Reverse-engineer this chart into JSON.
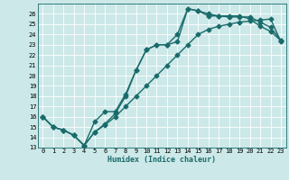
{
  "xlabel": "Humidex (Indice chaleur)",
  "bg_color": "#cce8e8",
  "line_color": "#1a6b6b",
  "grid_color": "#ffffff",
  "xlim": [
    -0.5,
    23.5
  ],
  "ylim": [
    13.0,
    27.0
  ],
  "yticks": [
    13,
    14,
    15,
    16,
    17,
    18,
    19,
    20,
    21,
    22,
    23,
    24,
    25,
    26
  ],
  "xticks": [
    0,
    1,
    2,
    3,
    4,
    5,
    6,
    7,
    8,
    9,
    10,
    11,
    12,
    13,
    14,
    15,
    16,
    17,
    18,
    19,
    20,
    21,
    22,
    23
  ],
  "line1_x": [
    0,
    1,
    2,
    3,
    4,
    5,
    6,
    7,
    8,
    9,
    10,
    11,
    12,
    13,
    14,
    15,
    16,
    17,
    18,
    19,
    20,
    21,
    22,
    23
  ],
  "line1_y": [
    16.0,
    15.0,
    14.7,
    14.2,
    13.2,
    15.5,
    16.5,
    16.5,
    18.2,
    20.5,
    22.5,
    23.0,
    23.0,
    23.3,
    26.5,
    26.3,
    26.0,
    25.8,
    25.8,
    25.8,
    25.5,
    24.8,
    24.3,
    23.4
  ],
  "line2_x": [
    0,
    1,
    2,
    3,
    4,
    5,
    6,
    7,
    8,
    9,
    10,
    11,
    12,
    13,
    14,
    15,
    16,
    17,
    18,
    19,
    20,
    21,
    22,
    23
  ],
  "line2_y": [
    16.0,
    15.0,
    14.7,
    14.2,
    13.2,
    14.5,
    15.2,
    16.0,
    17.0,
    18.0,
    19.0,
    20.0,
    21.0,
    22.0,
    23.0,
    24.0,
    24.5,
    24.8,
    25.0,
    25.2,
    25.3,
    25.4,
    25.5,
    23.3
  ],
  "line3_x": [
    0,
    1,
    2,
    3,
    4,
    5,
    6,
    7,
    8,
    9,
    10,
    11,
    12,
    13,
    14,
    15,
    16,
    17,
    18,
    19,
    20,
    21,
    22,
    23
  ],
  "line3_y": [
    16.0,
    15.0,
    14.7,
    14.2,
    13.2,
    14.5,
    15.3,
    16.3,
    18.0,
    20.5,
    22.5,
    23.0,
    23.0,
    24.0,
    26.5,
    26.3,
    25.8,
    25.8,
    25.7,
    25.7,
    25.7,
    25.2,
    24.7,
    23.4
  ],
  "marker": "D",
  "markersize": 2.5,
  "linewidth": 1.0
}
